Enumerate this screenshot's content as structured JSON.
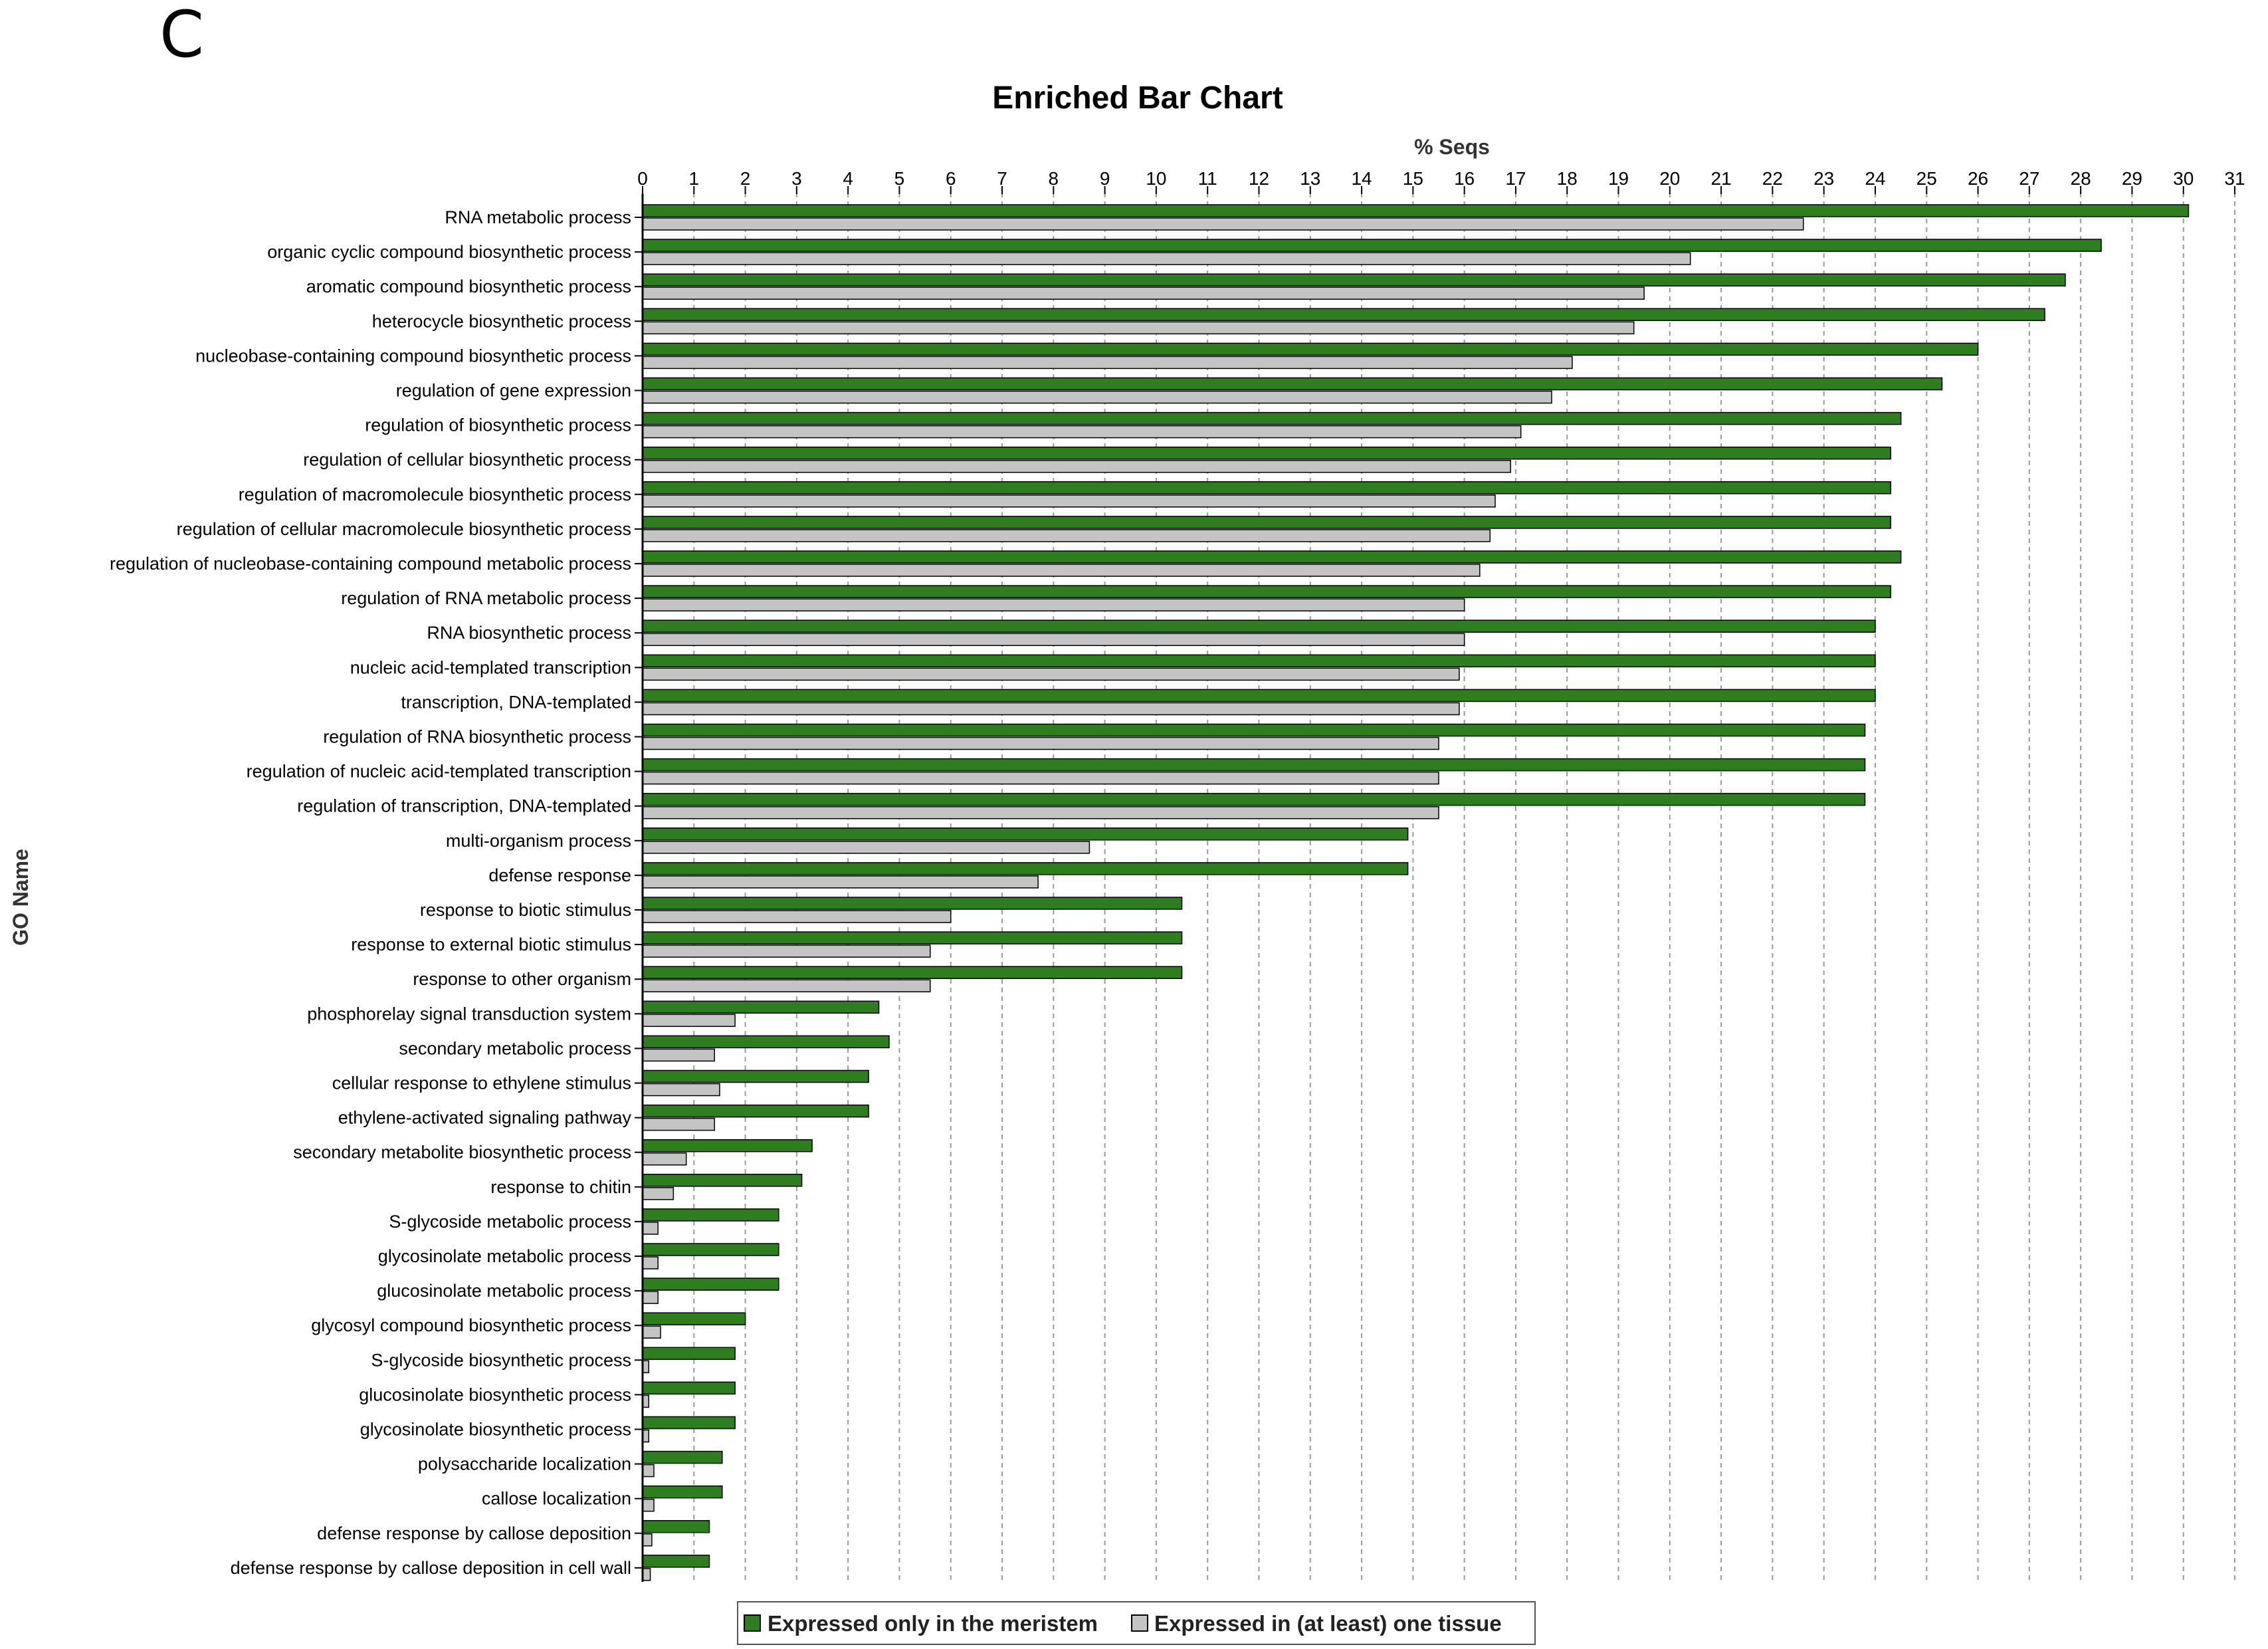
{
  "panel_letter": "C",
  "chart_data": {
    "type": "bar",
    "orientation": "horizontal",
    "title": "Enriched Bar Chart",
    "xlabel": "% Seqs",
    "ylabel": "GO Name",
    "xlim": [
      0,
      31
    ],
    "x_ticks": [
      0,
      1,
      2,
      3,
      4,
      5,
      6,
      7,
      8,
      9,
      10,
      11,
      12,
      13,
      14,
      15,
      16,
      17,
      18,
      19,
      20,
      21,
      22,
      23,
      24,
      25,
      26,
      27,
      28,
      29,
      30,
      31
    ],
    "grid": true,
    "x_axis_position": "top",
    "legend_position": "bottom-center",
    "categories": [
      "RNA metabolic process",
      "organic cyclic compound biosynthetic process",
      "aromatic compound biosynthetic process",
      "heterocycle biosynthetic process",
      "nucleobase-containing compound biosynthetic process",
      "regulation of gene expression",
      "regulation of biosynthetic process",
      "regulation of cellular biosynthetic process",
      "regulation of macromolecule biosynthetic process",
      "regulation of cellular macromolecule biosynthetic process",
      "regulation of nucleobase-containing compound metabolic process",
      "regulation of RNA metabolic process",
      "RNA biosynthetic process",
      "nucleic acid-templated transcription",
      "transcription, DNA-templated",
      "regulation of RNA biosynthetic process",
      "regulation of nucleic acid-templated transcription",
      "regulation of transcription, DNA-templated",
      "multi-organism process",
      "defense response",
      "response to biotic stimulus",
      "response to external biotic stimulus",
      "response to other organism",
      "phosphorelay signal transduction system",
      "secondary metabolic process",
      "cellular response to ethylene stimulus",
      "ethylene-activated signaling pathway",
      "secondary metabolite biosynthetic process",
      "response  to  chitin",
      "S-glycoside   metabolic   process",
      "glycosinolate  metabolic  process",
      "glucosinolate metabolic process",
      "glycosyl compound biosynthetic process",
      "S-glycoside biosynthetic process",
      "glucosinolate biosynthetic process",
      "glycosinolate biosynthetic process",
      "polysaccharide localization",
      "callose localization",
      "defense response by callose deposition",
      "defense response by callose deposition in cell wall"
    ],
    "series": [
      {
        "name": "Expressed only in the meristem",
        "color": "#2e7d1f",
        "values": [
          30.1,
          28.4,
          27.7,
          27.3,
          26.0,
          25.3,
          24.5,
          24.3,
          24.3,
          24.3,
          24.5,
          24.3,
          24.0,
          24.0,
          24.0,
          23.8,
          23.8,
          23.8,
          14.9,
          14.9,
          10.5,
          10.5,
          10.5,
          4.6,
          4.8,
          4.4,
          4.4,
          3.3,
          3.1,
          2.65,
          2.65,
          2.65,
          2.0,
          1.8,
          1.8,
          1.8,
          1.55,
          1.55,
          1.3,
          1.3
        ]
      },
      {
        "name": "Expressed in (at least) one tissue",
        "color": "#c4c4c4",
        "values": [
          22.6,
          20.4,
          19.5,
          19.3,
          18.1,
          17.7,
          17.1,
          16.9,
          16.6,
          16.5,
          16.3,
          16.0,
          16.0,
          15.9,
          15.9,
          15.5,
          15.5,
          15.5,
          8.7,
          7.7,
          6.0,
          5.6,
          5.6,
          1.8,
          1.4,
          1.5,
          1.4,
          0.85,
          0.6,
          0.3,
          0.3,
          0.3,
          0.35,
          0.12,
          0.12,
          0.12,
          0.22,
          0.22,
          0.18,
          0.15
        ]
      }
    ]
  }
}
